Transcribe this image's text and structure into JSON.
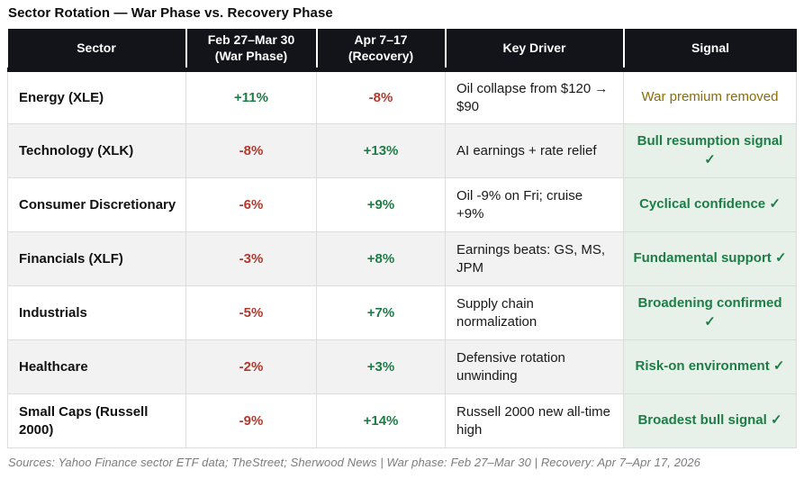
{
  "title": "Sector Rotation — War Phase vs. Recovery Phase",
  "header": [
    "Sector",
    "Feb 27–Mar 30\n(War Phase)",
    "Apr 7–17\n(Recovery)",
    "Key Driver",
    "Signal"
  ],
  "rows": [
    {
      "sector": "Energy (XLE)",
      "war": "+11%",
      "war_class": "pos",
      "recovery": "-8%",
      "recovery_class": "neg",
      "driver": "Oil collapse from $120 → $90",
      "signal": "War premium removed",
      "signal_class": "signal-caution"
    },
    {
      "sector": "Technology (XLK)",
      "war": "-8%",
      "war_class": "neg",
      "recovery": "+13%",
      "recovery_class": "pos",
      "driver": "AI earnings + rate relief",
      "signal": "Bull resumption signal ✓",
      "signal_class": "signal-green"
    },
    {
      "sector": "Consumer Discretionary",
      "war": "-6%",
      "war_class": "neg",
      "recovery": "+9%",
      "recovery_class": "pos",
      "driver": "Oil -9% on Fri; cruise +9%",
      "signal": "Cyclical confidence ✓",
      "signal_class": "signal-green"
    },
    {
      "sector": "Financials (XLF)",
      "war": "-3%",
      "war_class": "neg",
      "recovery": "+8%",
      "recovery_class": "pos",
      "driver": "Earnings beats: GS, MS, JPM",
      "signal": "Fundamental support ✓",
      "signal_class": "signal-green"
    },
    {
      "sector": "Industrials",
      "war": "-5%",
      "war_class": "neg",
      "recovery": "+7%",
      "recovery_class": "pos",
      "driver": "Supply chain normalization",
      "signal": "Broadening confirmed ✓",
      "signal_class": "signal-green"
    },
    {
      "sector": "Healthcare",
      "war": "-2%",
      "war_class": "neg",
      "recovery": "+3%",
      "recovery_class": "pos",
      "driver": "Defensive rotation unwinding",
      "signal": "Risk-on environment ✓",
      "signal_class": "signal-green"
    },
    {
      "sector": "Small Caps (Russell 2000)",
      "war": "-9%",
      "war_class": "neg",
      "recovery": "+14%",
      "recovery_class": "pos",
      "driver": "Russell 2000 new all-time high",
      "signal": "Broadest bull signal ✓",
      "signal_class": "signal-green"
    }
  ],
  "footer": "Sources: Yahoo Finance sector ETF data; TheStreet; Sherwood News | War phase: Feb 27–Mar 30 | Recovery: Apr 7–Apr 17, 2026",
  "colors": {
    "positive": "#1e7d46",
    "negative": "#b03a2e",
    "caution": "#8a6d0b",
    "signal_bg": "#e7f1ea",
    "header_bg": "#13131a",
    "row_alt_bg": "#f2f2f2"
  },
  "chart_data": {
    "type": "table",
    "title": "Sector Rotation — War Phase vs. Recovery Phase",
    "columns": [
      "Sector",
      "Feb 27–Mar 30 (War Phase)",
      "Apr 7–17 (Recovery)",
      "Key Driver",
      "Signal"
    ],
    "categories": [
      "Energy (XLE)",
      "Technology (XLK)",
      "Consumer Discretionary",
      "Financials (XLF)",
      "Industrials",
      "Healthcare",
      "Small Caps (Russell 2000)"
    ],
    "series": [
      {
        "name": "Feb 27–Mar 30 (War Phase)",
        "values": [
          11,
          -8,
          -6,
          -3,
          -5,
          -2,
          -9
        ],
        "unit": "%"
      },
      {
        "name": "Apr 7–17 (Recovery)",
        "values": [
          -8,
          13,
          9,
          8,
          7,
          3,
          14
        ],
        "unit": "%"
      }
    ],
    "key_drivers": [
      "Oil collapse from $120 → $90",
      "AI earnings + rate relief",
      "Oil -9% on Fri; cruise +9%",
      "Earnings beats: GS, MS, JPM",
      "Supply chain normalization",
      "Defensive rotation unwinding",
      "Russell 2000 new all-time high"
    ],
    "signals": [
      "War premium removed",
      "Bull resumption signal ✓",
      "Cyclical confidence ✓",
      "Fundamental support ✓",
      "Broadening confirmed ✓",
      "Risk-on environment ✓",
      "Broadest bull signal ✓"
    ]
  }
}
